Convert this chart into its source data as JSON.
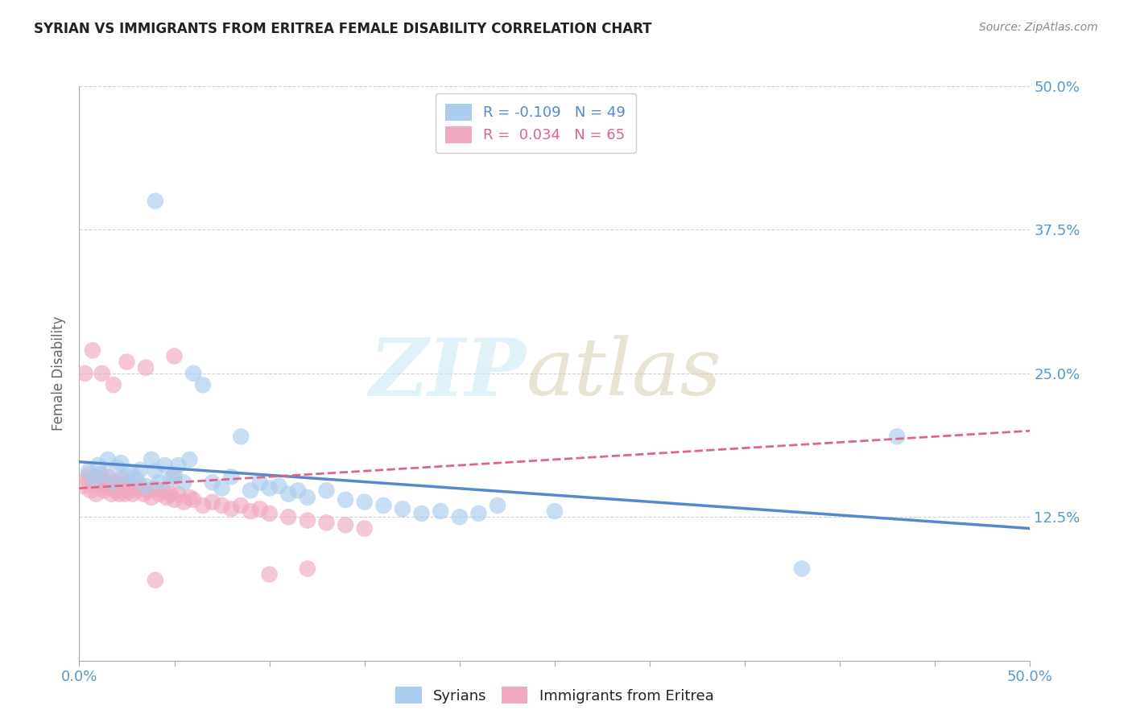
{
  "title": "SYRIAN VS IMMIGRANTS FROM ERITREA FEMALE DISABILITY CORRELATION CHART",
  "source": "Source: ZipAtlas.com",
  "ylabel": "Female Disability",
  "xlim": [
    0.0,
    0.5
  ],
  "ylim": [
    0.0,
    0.5
  ],
  "ytick_vals": [
    0.0,
    0.125,
    0.25,
    0.375,
    0.5
  ],
  "ytick_labels": [
    "",
    "12.5%",
    "25.0%",
    "37.5%",
    "50.0%"
  ],
  "syrians_R": -0.109,
  "syrians_N": 49,
  "eritrea_R": 0.034,
  "eritrea_N": 65,
  "syrians_color": "#aaccee",
  "eritrea_color": "#f0a8c0",
  "syrians_line_color": "#5588cc",
  "eritrea_line_color": "#dd6688",
  "background_color": "#ffffff",
  "grid_color": "#cccccc",
  "title_color": "#222222",
  "axis_label_color": "#666666",
  "tick_color": "#5599cc",
  "syrians_line_x0": 0.0,
  "syrians_line_x1": 0.5,
  "syrians_line_y0": 0.173,
  "syrians_line_y1": 0.115,
  "eritrea_line_x0": 0.0,
  "eritrea_line_x1": 0.5,
  "eritrea_line_y0": 0.15,
  "eritrea_line_y1": 0.2,
  "syrians_x": [
    0.005,
    0.008,
    0.01,
    0.012,
    0.015,
    0.018,
    0.02,
    0.022,
    0.025,
    0.028,
    0.03,
    0.032,
    0.035,
    0.038,
    0.04,
    0.042,
    0.045,
    0.048,
    0.05,
    0.052,
    0.055,
    0.058,
    0.06,
    0.065,
    0.07,
    0.075,
    0.08,
    0.085,
    0.09,
    0.095,
    0.1,
    0.105,
    0.11,
    0.115,
    0.12,
    0.13,
    0.14,
    0.15,
    0.16,
    0.17,
    0.18,
    0.19,
    0.2,
    0.21,
    0.22,
    0.04,
    0.25,
    0.38,
    0.43
  ],
  "syrians_y": [
    0.165,
    0.158,
    0.17,
    0.162,
    0.175,
    0.155,
    0.168,
    0.172,
    0.16,
    0.163,
    0.158,
    0.166,
    0.152,
    0.175,
    0.165,
    0.155,
    0.17,
    0.158,
    0.162,
    0.17,
    0.155,
    0.175,
    0.25,
    0.24,
    0.155,
    0.15,
    0.16,
    0.195,
    0.148,
    0.155,
    0.15,
    0.152,
    0.145,
    0.148,
    0.142,
    0.148,
    0.14,
    0.138,
    0.135,
    0.132,
    0.128,
    0.13,
    0.125,
    0.128,
    0.135,
    0.4,
    0.13,
    0.08,
    0.195
  ],
  "eritrea_x": [
    0.002,
    0.004,
    0.005,
    0.006,
    0.007,
    0.008,
    0.009,
    0.01,
    0.011,
    0.012,
    0.013,
    0.014,
    0.015,
    0.016,
    0.017,
    0.018,
    0.019,
    0.02,
    0.021,
    0.022,
    0.023,
    0.024,
    0.025,
    0.026,
    0.027,
    0.028,
    0.03,
    0.032,
    0.034,
    0.036,
    0.038,
    0.04,
    0.042,
    0.044,
    0.046,
    0.048,
    0.05,
    0.052,
    0.055,
    0.058,
    0.06,
    0.065,
    0.07,
    0.075,
    0.08,
    0.085,
    0.09,
    0.095,
    0.1,
    0.11,
    0.12,
    0.13,
    0.14,
    0.15,
    0.003,
    0.007,
    0.012,
    0.018,
    0.025,
    0.035,
    0.05,
    0.1,
    0.05,
    0.12,
    0.04
  ],
  "eritrea_y": [
    0.152,
    0.158,
    0.162,
    0.148,
    0.155,
    0.16,
    0.145,
    0.158,
    0.162,
    0.152,
    0.148,
    0.155,
    0.16,
    0.15,
    0.145,
    0.155,
    0.148,
    0.152,
    0.145,
    0.158,
    0.15,
    0.145,
    0.155,
    0.148,
    0.152,
    0.145,
    0.148,
    0.152,
    0.145,
    0.148,
    0.142,
    0.15,
    0.145,
    0.148,
    0.142,
    0.145,
    0.14,
    0.145,
    0.138,
    0.142,
    0.14,
    0.135,
    0.138,
    0.135,
    0.132,
    0.135,
    0.13,
    0.132,
    0.128,
    0.125,
    0.122,
    0.12,
    0.118,
    0.115,
    0.25,
    0.27,
    0.25,
    0.24,
    0.26,
    0.255,
    0.265,
    0.075,
    0.16,
    0.08,
    0.07
  ]
}
